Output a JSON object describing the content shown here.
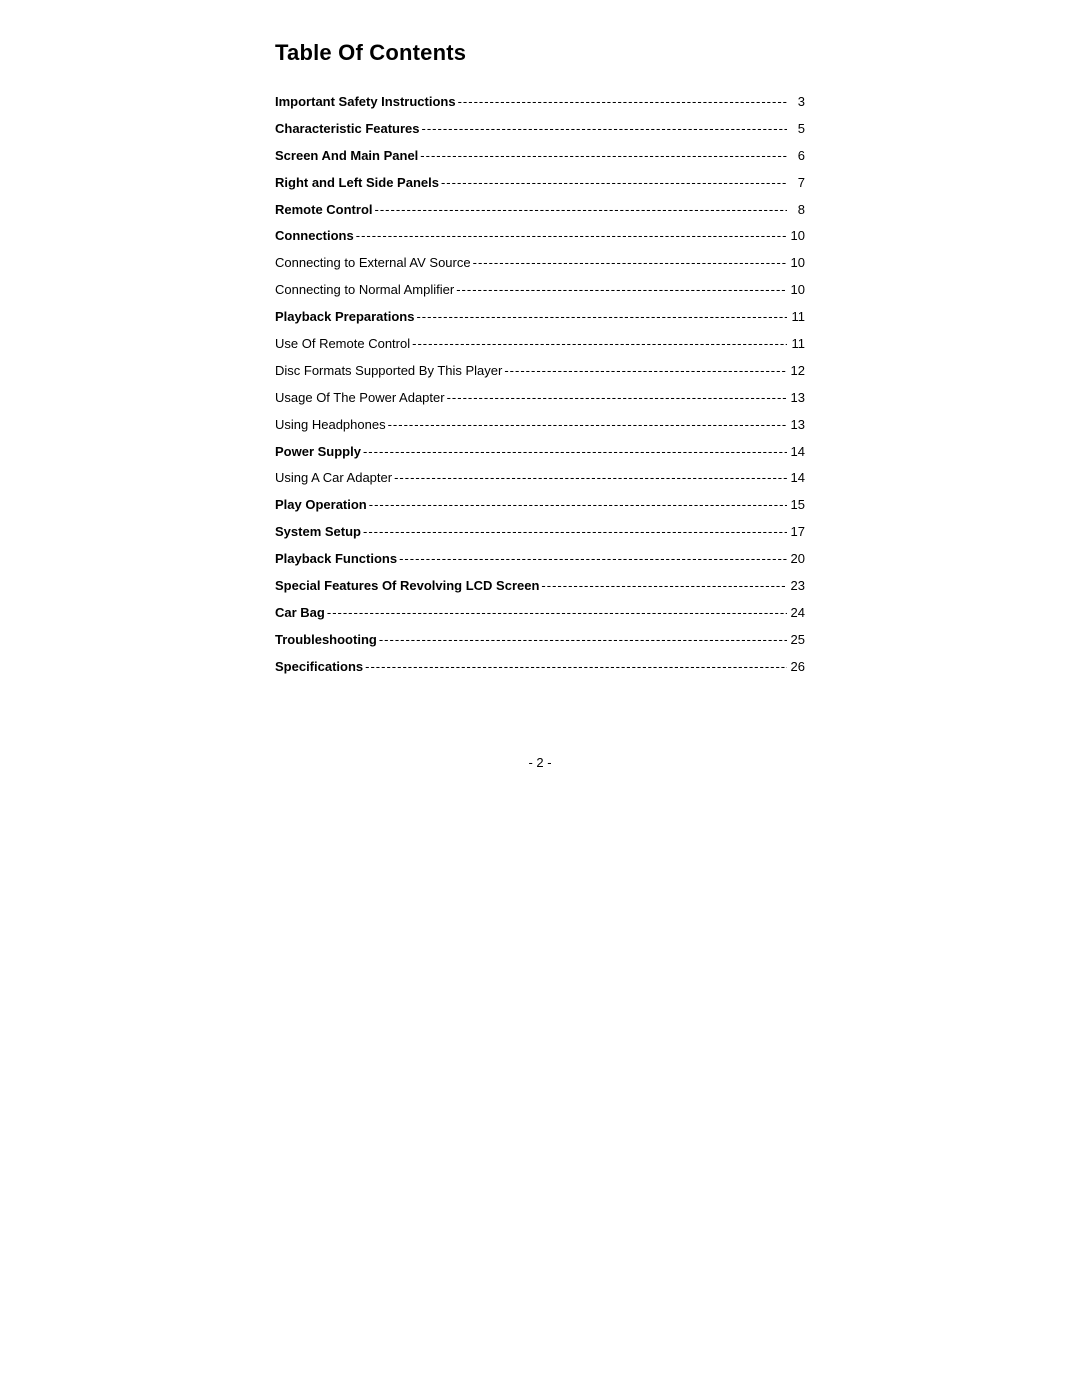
{
  "title": "Table Of Contents",
  "pageFooter": "- 2 -",
  "entries": [
    {
      "label": "Important Safety Instructions",
      "page": "3",
      "bold": true
    },
    {
      "label": "Characteristic Features",
      "page": "5",
      "bold": true
    },
    {
      "label": "Screen And Main Panel",
      "page": "6",
      "bold": true
    },
    {
      "label": "Right and Left Side Panels",
      "page": "7",
      "bold": true
    },
    {
      "label": "Remote Control",
      "page": "8",
      "bold": true
    },
    {
      "label": "Connections",
      "page": "10",
      "bold": true
    },
    {
      "label": "Connecting to External AV Source",
      "page": "10",
      "bold": false
    },
    {
      "label": "Connecting to Normal Amplifier",
      "page": "10",
      "bold": false
    },
    {
      "label": "Playback Preparations",
      "page": "11",
      "bold": true
    },
    {
      "label": "Use Of Remote Control",
      "page": "11",
      "bold": false
    },
    {
      "label": "Disc Formats Supported By This Player",
      "page": "12",
      "bold": false
    },
    {
      "label": "Usage Of The Power Adapter",
      "page": "13",
      "bold": false
    },
    {
      "label": "Using Headphones",
      "page": "13",
      "bold": false
    },
    {
      "label": "Power Supply",
      "page": "14",
      "bold": true
    },
    {
      "label": "Using A Car Adapter",
      "page": "14",
      "bold": false
    },
    {
      "label": "Play Operation",
      "page": "15",
      "bold": true
    },
    {
      "label": "System Setup",
      "page": "17",
      "bold": true
    },
    {
      "label": "Playback Functions",
      "page": "20",
      "bold": true
    },
    {
      "label": "Special Features Of Revolving LCD Screen",
      "page": "23",
      "bold": true
    },
    {
      "label": "Car Bag",
      "page": "24",
      "bold": true
    },
    {
      "label": "Troubleshooting",
      "page": "25",
      "bold": true
    },
    {
      "label": "Specifications",
      "page": "26",
      "bold": true
    }
  ]
}
